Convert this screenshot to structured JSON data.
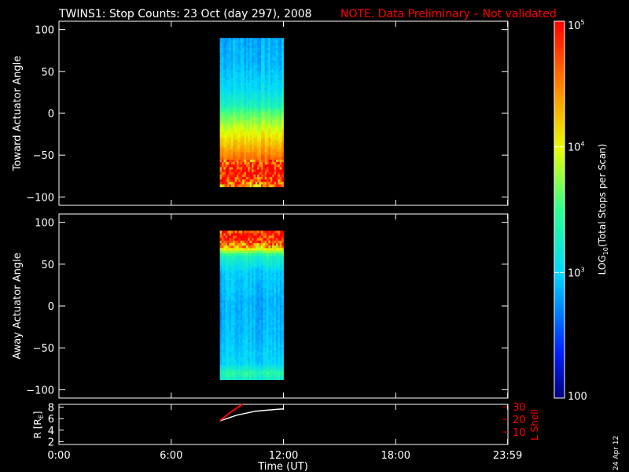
{
  "header": {
    "title": "TWINS1: Stop Counts: 23 Oct (day 297), 2008",
    "note": "NOTE. Data Preliminary – Not validated"
  },
  "colors": {
    "background": "#000000",
    "foreground": "#ffffff",
    "note": "#ff0000",
    "ephemeris_l_shell": "#ff0000",
    "ephemeris_r": "#ffffff"
  },
  "colorbar": {
    "label": "LOG10(Total Stops per Scan)",
    "label_base": "LOG",
    "label_sub": "10",
    "label_rest": "(Total Stops per Scan)",
    "ticks": [
      {
        "value": 100,
        "label": "100"
      },
      {
        "value": 1000,
        "label": "10",
        "exp": "3"
      },
      {
        "value": 10000,
        "label": "10",
        "exp": "4"
      },
      {
        "value": 100000,
        "label": "10",
        "exp": "5"
      }
    ],
    "scale": "log",
    "range": [
      100,
      100000
    ]
  },
  "x_axis": {
    "label": "Time (UT)",
    "ticks": [
      "0:00",
      "6:00",
      "12:00",
      "18:00",
      "23:59"
    ],
    "tick_hours": [
      0,
      6,
      12,
      18,
      23.983
    ]
  },
  "stamp": "24 Apr 12",
  "chart_data": [
    {
      "type": "heatmap",
      "ylabel": "Toward Actuator Angle",
      "ylim": [
        -110,
        110
      ],
      "yticks": [
        100,
        50,
        0,
        -50,
        -100
      ],
      "x_range_hours": [
        8.6,
        12.0
      ],
      "y_range_deg": [
        -88,
        90
      ],
      "angle_profile_log10": [
        {
          "angle": 90,
          "log10": 2.85
        },
        {
          "angle": 60,
          "log10": 2.9
        },
        {
          "angle": 30,
          "log10": 3.05
        },
        {
          "angle": 10,
          "log10": 3.3
        },
        {
          "angle": 0,
          "log10": 3.6
        },
        {
          "angle": -20,
          "log10": 3.95
        },
        {
          "angle": -40,
          "log10": 4.3
        },
        {
          "angle": -55,
          "log10": 4.6
        },
        {
          "angle": -62,
          "log10": 4.85
        },
        {
          "angle": -75,
          "log10": 4.9
        },
        {
          "angle": -88,
          "log10": 4.4
        }
      ]
    },
    {
      "type": "heatmap",
      "ylabel": "Away Actuator Angle",
      "ylim": [
        -110,
        110
      ],
      "yticks": [
        100,
        50,
        0,
        -50,
        -100
      ],
      "x_range_hours": [
        8.6,
        12.0
      ],
      "y_range_deg": [
        -88,
        90
      ],
      "angle_profile_log10": [
        {
          "angle": 90,
          "log10": 4.8
        },
        {
          "angle": 80,
          "log10": 4.9
        },
        {
          "angle": 72,
          "log10": 4.4
        },
        {
          "angle": 60,
          "log10": 3.3
        },
        {
          "angle": 40,
          "log10": 2.95
        },
        {
          "angle": 0,
          "log10": 2.85
        },
        {
          "angle": -40,
          "log10": 2.9
        },
        {
          "angle": -70,
          "log10": 3.0
        },
        {
          "angle": -80,
          "log10": 3.4
        },
        {
          "angle": -88,
          "log10": 3.2
        }
      ]
    },
    {
      "type": "line",
      "ylabel": "R [RE]",
      "ylabel_base": "R [R",
      "ylabel_sub": "E",
      "ylabel_end": "]",
      "ylim": [
        1.5,
        8.5
      ],
      "yticks": [
        2,
        4,
        6,
        8
      ],
      "y2label": "L Shell",
      "y2lim": [
        0,
        32
      ],
      "y2ticks": [
        10,
        20,
        30
      ],
      "series": [
        {
          "axis": "left",
          "x_hours": [
            8.6,
            9.5,
            10.5,
            11.5,
            12.0
          ],
          "y": [
            5.6,
            6.6,
            7.3,
            7.6,
            7.7
          ]
        },
        {
          "axis": "right",
          "x_hours": [
            8.6,
            9.2,
            9.8
          ],
          "y": [
            19,
            26,
            32
          ]
        }
      ]
    }
  ]
}
